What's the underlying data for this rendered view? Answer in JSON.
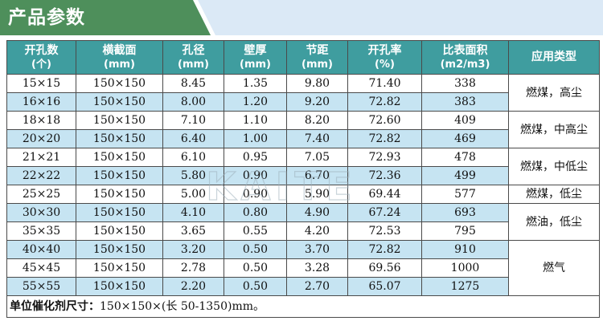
{
  "banner": {
    "title": "产品参数"
  },
  "table": {
    "headers": [
      {
        "label": "开孔数",
        "unit": "(个)"
      },
      {
        "label": "横截面",
        "unit": "(mm)"
      },
      {
        "label": "孔径",
        "unit": "(mm)"
      },
      {
        "label": "壁厚",
        "unit": "(mm)"
      },
      {
        "label": "节距",
        "unit": "(mm)"
      },
      {
        "label": "开孔率",
        "unit": "(%)"
      },
      {
        "label": "比表面积",
        "unit": "(m2/m3)"
      },
      {
        "label": "应用类型",
        "unit": ""
      }
    ],
    "rows": [
      [
        "15×15",
        "150×150",
        "8.45",
        "1.35",
        "9.80",
        "71.40",
        "338"
      ],
      [
        "16×16",
        "150×150",
        "8.00",
        "1.20",
        "9.20",
        "72.82",
        "383"
      ],
      [
        "18×18",
        "150×150",
        "7.10",
        "1.10",
        "8.20",
        "72.60",
        "409"
      ],
      [
        "20×20",
        "150×150",
        "6.40",
        "1.00",
        "7.40",
        "72.82",
        "469"
      ],
      [
        "21×21",
        "150×150",
        "6.10",
        "0.95",
        "7.05",
        "72.93",
        "478"
      ],
      [
        "22×22",
        "150×150",
        "5.80",
        "0.90",
        "6.70",
        "72.36",
        "499"
      ],
      [
        "25×25",
        "150×150",
        "5.00",
        "0.90",
        "5.90",
        "69.44",
        "577"
      ],
      [
        "30×30",
        "150×150",
        "4.10",
        "0.80",
        "4.90",
        "67.24",
        "693"
      ],
      [
        "35×35",
        "150×150",
        "3.65",
        "0.55",
        "4.20",
        "72.53",
        "795"
      ],
      [
        "40×40",
        "150×150",
        "3.20",
        "0.50",
        "3.70",
        "72.82",
        "910"
      ],
      [
        "45×45",
        "150×150",
        "2.78",
        "0.50",
        "3.28",
        "69.56",
        "1000"
      ],
      [
        "55×55",
        "150×150",
        "2.20",
        "0.50",
        "2.70",
        "65.07",
        "1275"
      ]
    ],
    "applications": [
      "燃煤，高尘",
      "燃煤，中高尘",
      "燃煤，中低尘",
      "燃煤，低尘",
      "燃油，低尘",
      "燃气"
    ]
  },
  "footer": {
    "label": "单位催化剂尺寸：",
    "value": "150×150×(长 50-1350)mm。"
  },
  "watermark": {
    "text": "KAITE"
  },
  "colors": {
    "banner_green": "#4e8f5b",
    "banner_blue": "#dbe9f6",
    "header_teal": "#3f9d9f",
    "row_blue": "#c6e4f2"
  }
}
